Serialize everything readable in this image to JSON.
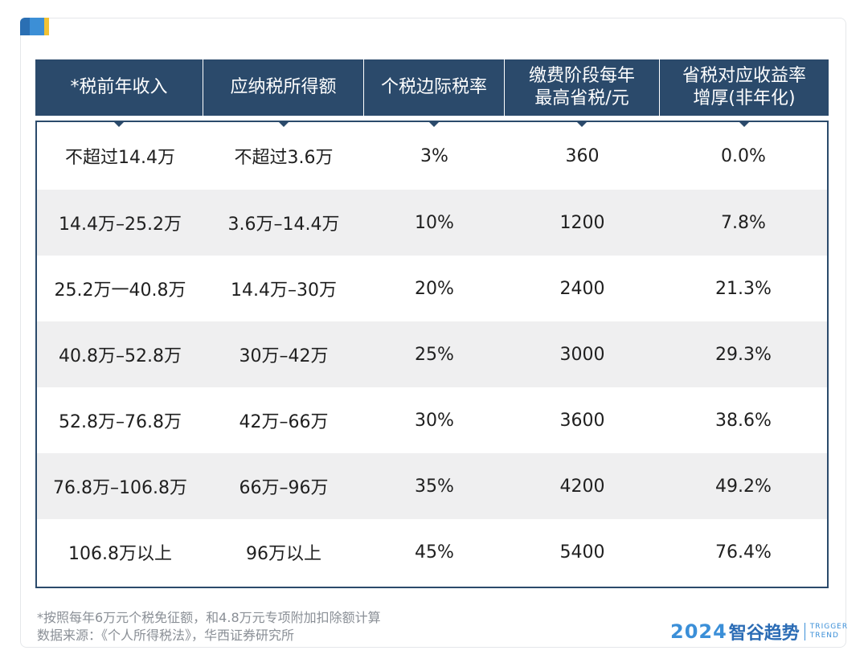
{
  "table": {
    "headers": [
      "*税前年收入",
      "应纳税所得额",
      "个税边际税率",
      "缴费阶段每年\n最高省税/元",
      "省税对应收益率\n增厚(非年化)"
    ],
    "rows": [
      [
        "不超过14.4万",
        "不超过3.6万",
        "3%",
        "360",
        "0.0%"
      ],
      [
        "14.4万–25.2万",
        "3.6万–14.4万",
        "10%",
        "1200",
        "7.8%"
      ],
      [
        "25.2万一40.8万",
        "14.4万–30万",
        "20%",
        "2400",
        "21.3%"
      ],
      [
        "40.8万–52.8万",
        "30万–42万",
        "25%",
        "3000",
        "29.3%"
      ],
      [
        "52.8万–76.8万",
        "42万–66万",
        "30%",
        "3600",
        "38.6%"
      ],
      [
        "76.8万–106.8万",
        "66万–96万",
        "35%",
        "4200",
        "49.2%"
      ],
      [
        "106.8万以上",
        "96万以上",
        "45%",
        "5400",
        "76.4%"
      ]
    ]
  },
  "footnote": {
    "line1": "*按照每年6万元个税免征额，和4.8万元专项附加扣除额计算",
    "line2": "数据来源：《个人所得税法》，华西证券研究所"
  },
  "brand": {
    "year": "2024",
    "name": "智谷趋势",
    "en_line1": "TRIGGER",
    "en_line2": "TREND"
  },
  "colors": {
    "header_bg": "#2b4a6b",
    "row_alt_bg": "#efeff0",
    "brand_blue": "#3b8fd8"
  }
}
